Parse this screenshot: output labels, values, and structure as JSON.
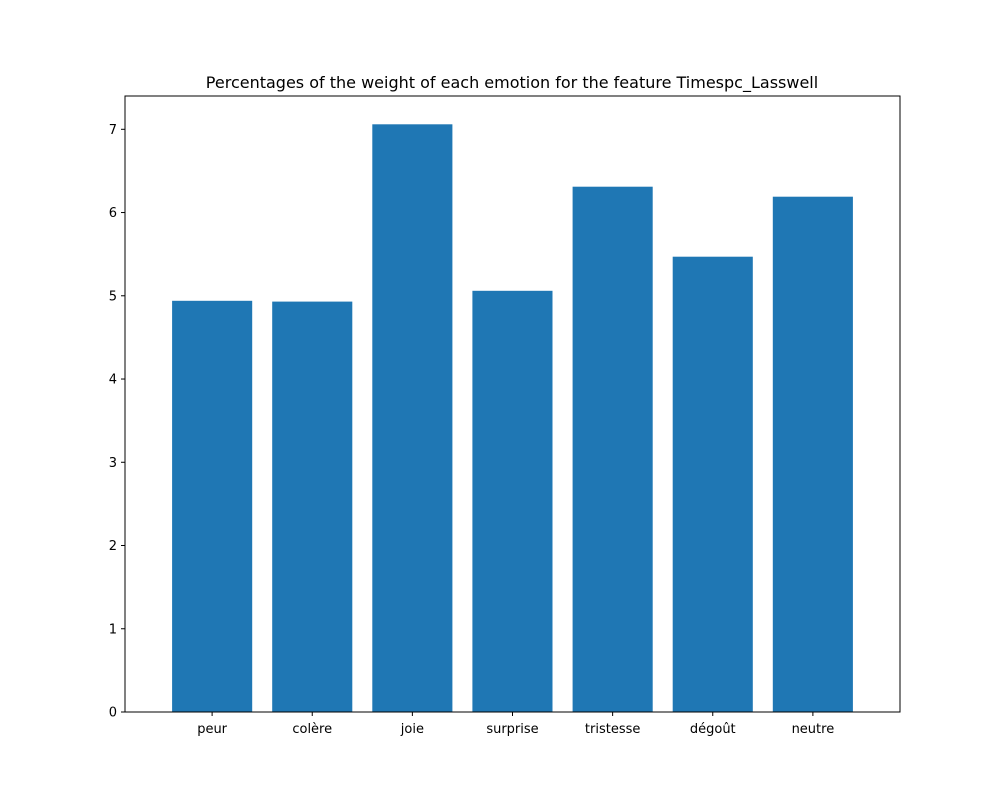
{
  "chart_data": {
    "type": "bar",
    "title": "Percentages of the weight of each emotion for the feature Timespc_Lasswell",
    "xlabel": "",
    "ylabel": "",
    "categories": [
      "peur",
      "colère",
      "joie",
      "surprise",
      "tristesse",
      "dégoût",
      "neutre"
    ],
    "values": [
      4.94,
      4.93,
      7.06,
      5.06,
      6.31,
      5.47,
      6.19
    ],
    "ylim": [
      0,
      7.4
    ],
    "yticks": [
      0,
      1,
      2,
      3,
      4,
      5,
      6,
      7
    ],
    "bar_color": "#1f77b4",
    "grid": false,
    "legend": "none"
  }
}
